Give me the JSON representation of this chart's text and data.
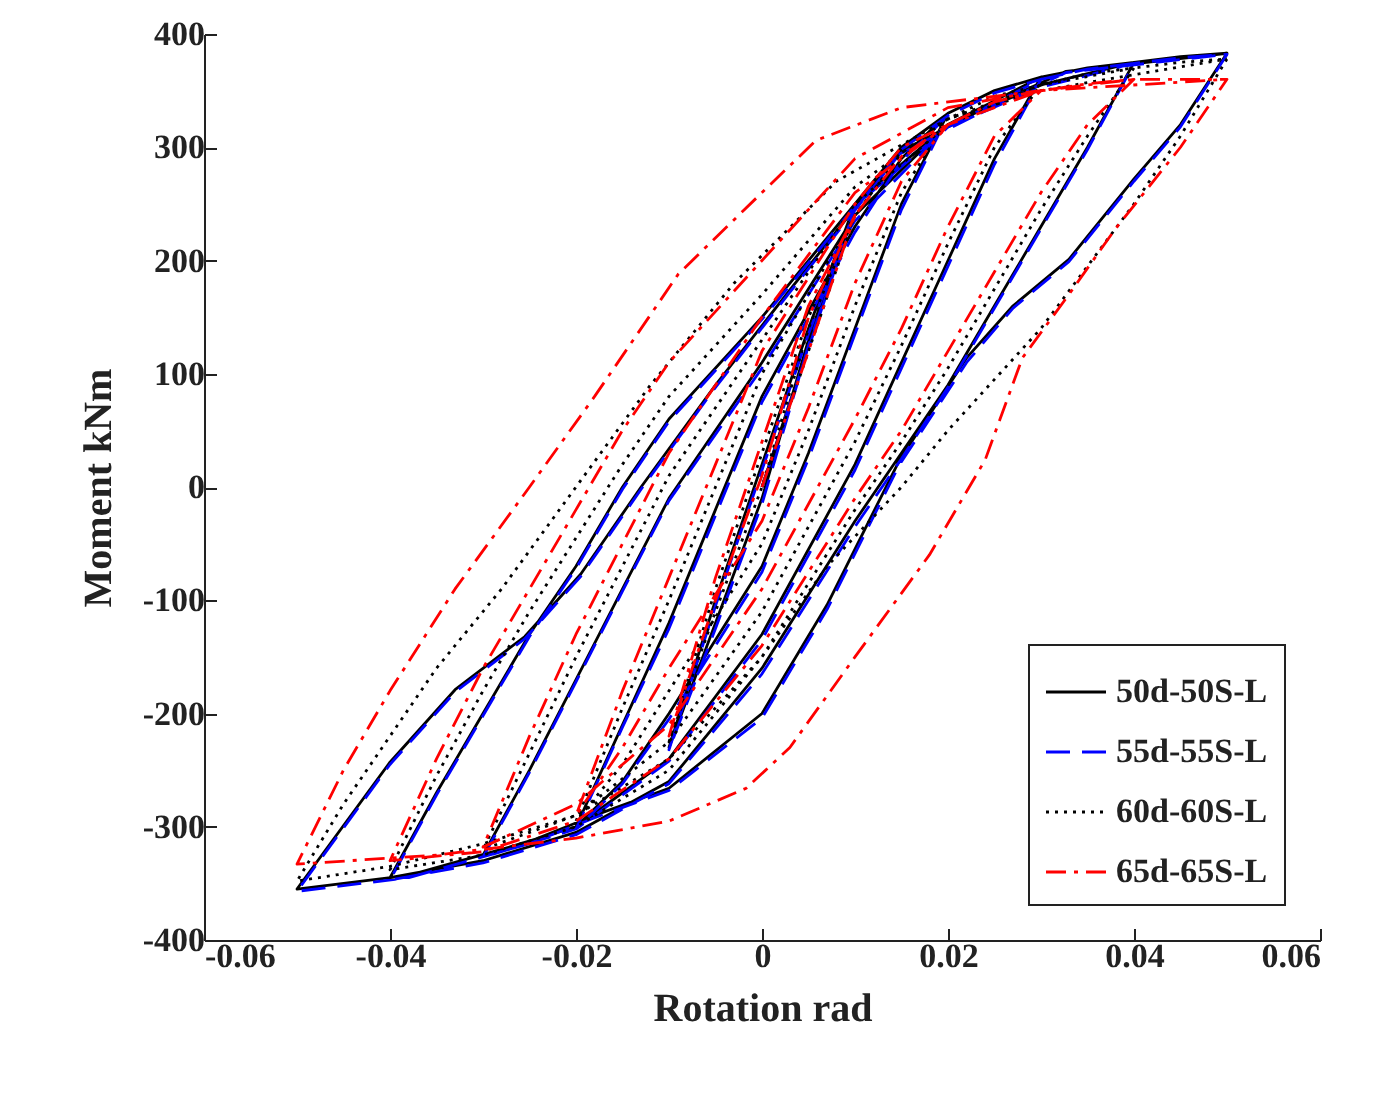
{
  "chart_data": {
    "type": "line",
    "xlabel": "Rotation rad",
    "ylabel": "Moment kNm",
    "xlim": [
      -0.06,
      0.06
    ],
    "xticks": [
      -0.06,
      -0.04,
      -0.02,
      0,
      0.02,
      0.04,
      0.06
    ],
    "ylim": [
      -400,
      400
    ],
    "yticks": [
      -400,
      -300,
      -200,
      -100,
      0,
      100,
      200,
      300,
      400
    ],
    "grid": false,
    "legend": "bottom right",
    "marker": "none",
    "series": [
      {
        "name": "50d-50S-L",
        "color": "#000000",
        "line_style": "solid",
        "x": [
          0,
          0.01,
          0.005,
          0,
          -0.005,
          -0.01,
          -0.005,
          0,
          0.005,
          0.01,
          0.015,
          0.02,
          0.015,
          0.01,
          0.005,
          0,
          -0.01,
          -0.015,
          -0.02,
          -0.015,
          -0.01,
          -0.005,
          0,
          0.01,
          0.015,
          0.02,
          0.025,
          0.03,
          0.025,
          0.02,
          0.015,
          0.01,
          0,
          -0.01,
          -0.02,
          -0.03,
          -0.025,
          -0.02,
          -0.015,
          -0.01,
          0,
          0.01,
          0.02,
          0.03,
          0.035,
          0.04,
          0.035,
          0.03,
          0.025,
          0.02,
          0.015,
          0.01,
          0,
          -0.01,
          -0.02,
          -0.03,
          -0.04,
          -0.035,
          -0.03,
          -0.025,
          -0.02,
          -0.015,
          -0.01,
          0,
          0.01,
          0.02,
          0.03,
          0.04,
          0.045,
          0.05,
          0.045,
          0.04,
          0.033,
          0.027,
          0.022,
          0.0185,
          0.0148,
          0.007,
          0,
          -0.01,
          -0.018,
          -0.025,
          -0.038,
          -0.05,
          -0.04,
          -0.033,
          -0.0255,
          -0.0195,
          -0.013,
          -0.005,
          0.003,
          0.0148,
          0.0236,
          0.0327,
          0.05
        ],
        "values": [
          0,
          250,
          130,
          -10,
          -120,
          -230,
          -100,
          20,
          140,
          250,
          300,
          330,
          250,
          140,
          30,
          -70,
          -200,
          -260,
          -300,
          -210,
          -120,
          -20,
          80,
          230,
          290,
          330,
          350,
          362,
          290,
          200,
          110,
          20,
          -130,
          -240,
          -300,
          -325,
          -250,
          -170,
          -90,
          -10,
          110,
          240,
          320,
          362,
          370,
          375,
          300,
          230,
          160,
          90,
          30,
          -30,
          -160,
          -260,
          -305,
          -330,
          -345,
          -270,
          -200,
          -130,
          -70,
          0,
          60,
          150,
          250,
          320,
          355,
          375,
          380,
          383,
          320,
          272,
          201,
          160,
          114,
          70,
          24,
          -104,
          -200,
          -266,
          -290,
          -313,
          -343,
          -355,
          -243,
          -179,
          -132,
          -77,
          0,
          90,
          174,
          296,
          333,
          367,
          383
        ]
      },
      {
        "name": "55d-55S-L",
        "color": "#0000ff",
        "line_style": "dashed",
        "x": [
          0,
          0.01,
          0.005,
          0,
          -0.005,
          -0.01,
          -0.005,
          0,
          0.005,
          0.01,
          0.015,
          0.02,
          0.015,
          0.01,
          0.005,
          0,
          -0.01,
          -0.015,
          -0.02,
          -0.015,
          -0.01,
          -0.005,
          0,
          0.01,
          0.015,
          0.02,
          0.025,
          0.03,
          0.025,
          0.02,
          0.015,
          0.01,
          0,
          -0.01,
          -0.02,
          -0.03,
          -0.025,
          -0.02,
          -0.015,
          -0.01,
          0,
          0.01,
          0.02,
          0.03,
          0.035,
          0.04,
          0.035,
          0.03,
          0.025,
          0.02,
          0.015,
          0.01,
          0,
          -0.01,
          -0.02,
          -0.03,
          -0.04,
          -0.035,
          -0.03,
          -0.025,
          -0.02,
          -0.015,
          -0.01,
          0,
          0.01,
          0.02,
          0.03,
          0.04,
          0.045,
          0.05,
          0.045,
          0.04,
          0.033,
          0.027,
          0.022,
          0.0185,
          0.0148,
          0.007,
          0,
          -0.01,
          -0.018,
          -0.025,
          -0.038,
          -0.05,
          -0.04,
          -0.033,
          -0.0255,
          -0.0195,
          -0.013,
          -0.005,
          0.003,
          0.0148,
          0.0236,
          0.0327,
          0.05
        ],
        "values": [
          0,
          245,
          125,
          -15,
          -125,
          -232,
          -105,
          15,
          135,
          245,
          298,
          328,
          245,
          135,
          25,
          -75,
          -205,
          -262,
          -302,
          -212,
          -125,
          -25,
          75,
          225,
          288,
          328,
          348,
          360,
          285,
          195,
          105,
          15,
          -135,
          -242,
          -302,
          -327,
          -252,
          -172,
          -92,
          -12,
          105,
          235,
          318,
          360,
          369,
          374,
          298,
          228,
          158,
          88,
          25,
          -35,
          -165,
          -262,
          -307,
          -332,
          -347,
          -272,
          -202,
          -132,
          -72,
          -2,
          58,
          148,
          248,
          318,
          353,
          374,
          379,
          382,
          318,
          270,
          199,
          158,
          110,
          66,
          20,
          -108,
          -204,
          -268,
          -292,
          -315,
          -345,
          -357,
          -245,
          -181,
          -134,
          -79,
          -2,
          88,
          172,
          294,
          331,
          366,
          382
        ]
      },
      {
        "name": "60d-60S-L",
        "color": "#000000",
        "line_style": "dotted",
        "x": [
          0,
          0.01,
          0.005,
          0,
          -0.005,
          -0.01,
          -0.005,
          0,
          0.005,
          0.01,
          0.015,
          0.02,
          0.015,
          0.01,
          0.005,
          0,
          -0.01,
          -0.015,
          -0.02,
          -0.015,
          -0.01,
          -0.005,
          0,
          0.01,
          0.015,
          0.02,
          0.025,
          0.03,
          0.025,
          0.02,
          0.015,
          0.01,
          0,
          -0.01,
          -0.02,
          -0.03,
          -0.025,
          -0.02,
          -0.015,
          -0.01,
          0,
          0.01,
          0.02,
          0.03,
          0.035,
          0.04,
          0.035,
          0.03,
          0.025,
          0.02,
          0.015,
          0.01,
          0,
          -0.01,
          -0.02,
          -0.03,
          -0.04,
          -0.035,
          -0.03,
          -0.025,
          -0.02,
          -0.015,
          -0.01,
          0,
          0.01,
          0.02,
          0.03,
          0.04,
          0.045,
          0.05,
          0.045,
          0.04,
          0.035,
          0.03,
          0.025,
          0.02,
          0.015,
          0.007,
          0,
          -0.01,
          -0.02,
          -0.03,
          -0.04,
          -0.05,
          -0.045,
          -0.04,
          -0.035,
          -0.028,
          -0.02,
          -0.012,
          -0.003,
          0.008,
          0.02,
          0.03,
          0.05
        ],
        "values": [
          0,
          240,
          140,
          0,
          -110,
          -225,
          -90,
          30,
          150,
          240,
          295,
          325,
          260,
          160,
          50,
          -50,
          -180,
          -245,
          -295,
          -195,
          -100,
          0,
          100,
          240,
          295,
          325,
          345,
          355,
          300,
          215,
          125,
          40,
          -110,
          -225,
          -290,
          -320,
          -235,
          -150,
          -70,
          10,
          130,
          250,
          320,
          355,
          365,
          370,
          310,
          245,
          175,
          105,
          40,
          -20,
          -150,
          -250,
          -300,
          -325,
          -338,
          -255,
          -180,
          -110,
          -45,
          20,
          80,
          170,
          265,
          325,
          355,
          370,
          375,
          378,
          310,
          250,
          195,
          140,
          95,
          50,
          0,
          -70,
          -150,
          -240,
          -290,
          -315,
          -335,
          -348,
          -280,
          -220,
          -160,
          -90,
          0,
          90,
          180,
          270,
          325,
          350,
          378
        ]
      },
      {
        "name": "65d-65S-L",
        "color": "#ff0000",
        "line_style": "dashdot",
        "x": [
          0,
          0.01,
          0.005,
          0,
          -0.005,
          -0.01,
          -0.005,
          0,
          0.005,
          0.01,
          0.015,
          0.02,
          0.015,
          0.01,
          0.005,
          0,
          -0.01,
          -0.015,
          -0.02,
          -0.015,
          -0.01,
          -0.005,
          0,
          0.01,
          0.015,
          0.02,
          0.025,
          0.03,
          0.025,
          0.02,
          0.015,
          0.01,
          0,
          -0.01,
          -0.02,
          -0.03,
          -0.025,
          -0.02,
          -0.015,
          -0.01,
          0,
          0.01,
          0.02,
          0.03,
          0.035,
          0.04,
          0.035,
          0.03,
          0.025,
          0.02,
          0.015,
          0.01,
          0,
          -0.01,
          -0.02,
          -0.03,
          -0.04,
          -0.035,
          -0.03,
          -0.025,
          -0.02,
          -0.015,
          -0.01,
          0,
          0.01,
          0.02,
          0.03,
          0.04,
          0.045,
          0.05,
          0.045,
          0.038,
          0.033,
          0.028,
          0.024,
          0.018,
          0.01,
          0.003,
          -0.0017,
          -0.01,
          -0.02,
          -0.035,
          -0.05,
          -0.045,
          -0.04,
          -0.033,
          -0.025,
          -0.018,
          -0.009,
          0,
          0.0058,
          0.015,
          0.03,
          0.05
        ],
        "values": [
          0,
          240,
          150,
          10,
          -100,
          -220,
          -80,
          40,
          160,
          240,
          292,
          320,
          270,
          180,
          70,
          -30,
          -160,
          -230,
          -290,
          -180,
          -80,
          20,
          120,
          250,
          300,
          320,
          340,
          350,
          310,
          230,
          140,
          60,
          -90,
          -210,
          -280,
          -318,
          -220,
          -130,
          -50,
          30,
          150,
          260,
          320,
          350,
          356,
          360,
          320,
          260,
          190,
          120,
          50,
          -10,
          -140,
          -240,
          -295,
          -322,
          -330,
          -240,
          -160,
          -90,
          -20,
          50,
          110,
          200,
          290,
          335,
          350,
          360,
          360,
          360,
          300,
          228,
          170,
          114,
          24,
          -60,
          -150,
          -230,
          -266,
          -295,
          -310,
          -325,
          -333,
          -250,
          -180,
          -90,
          0,
          80,
          188,
          260,
          306,
          335,
          350,
          360
        ]
      }
    ]
  }
}
